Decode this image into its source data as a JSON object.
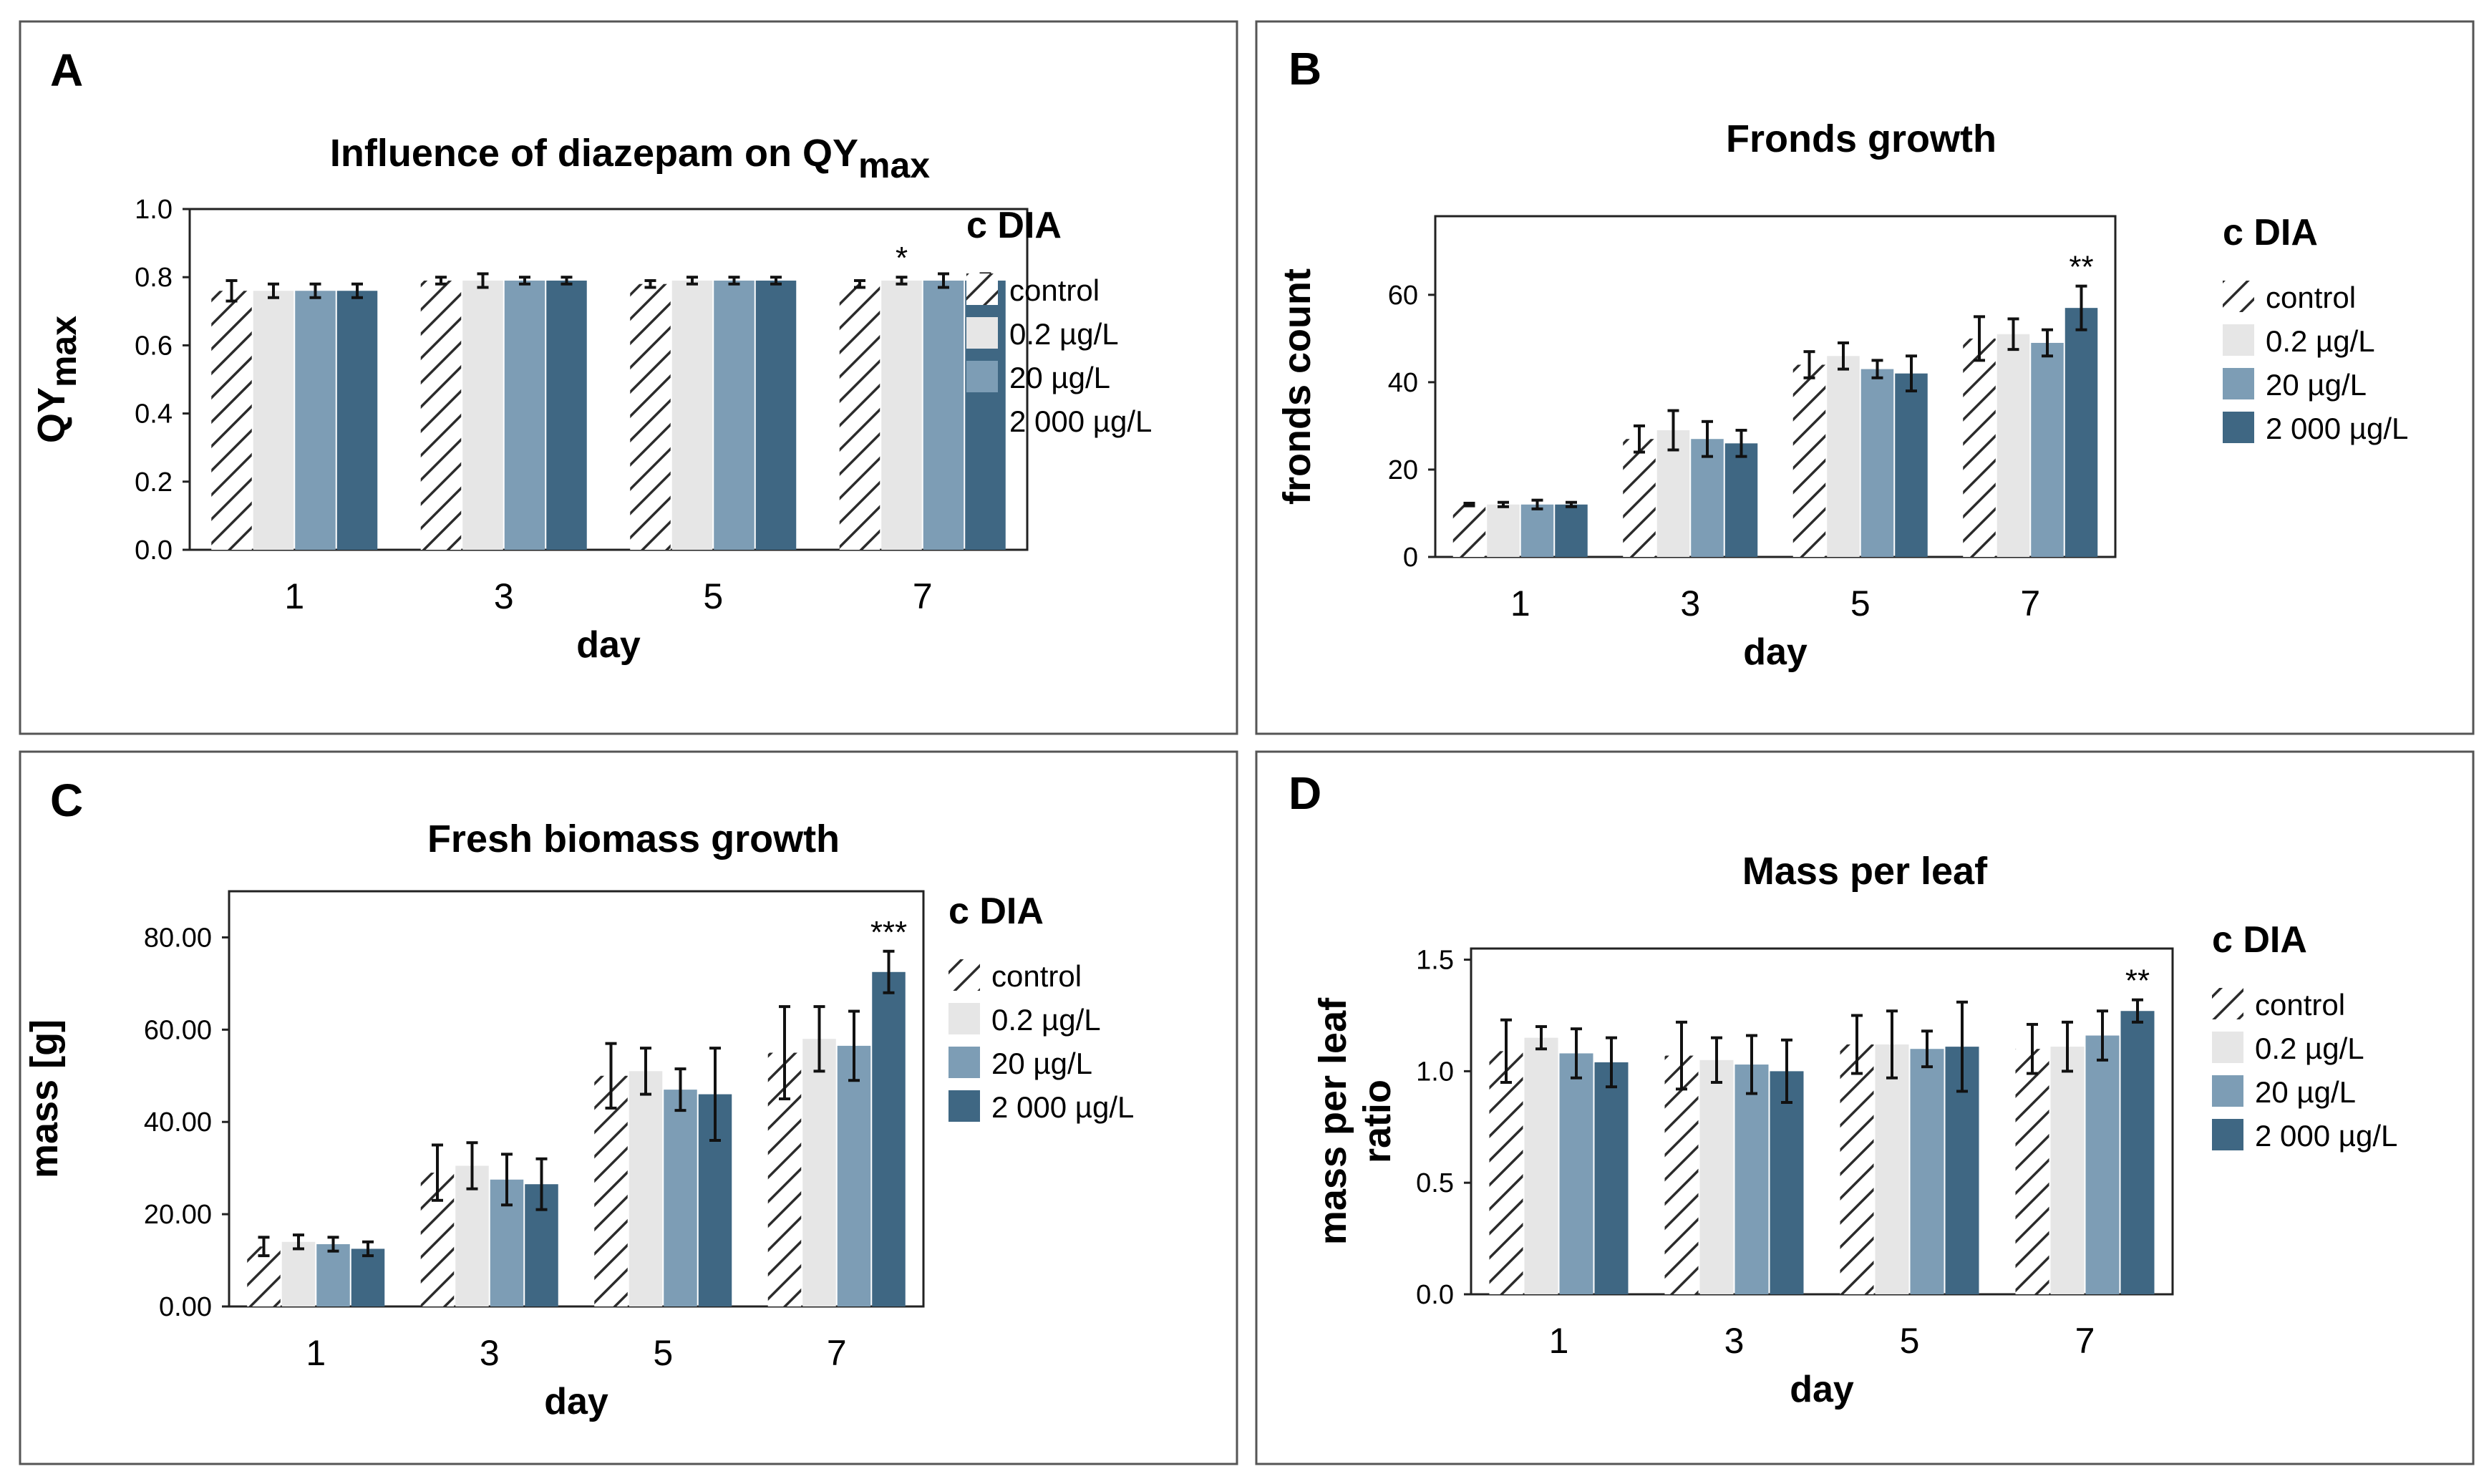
{
  "figure": {
    "legend_labels": [
      "control",
      "0.2 µg/L",
      "20 µg/L",
      "2 000 µg/L"
    ],
    "colors": {
      "control": "#ffffff",
      "hatch": "#2b2b2b",
      "low": "#e6e6e6",
      "mid": "#7d9db5",
      "high": "#3f6783",
      "axis": "#222222",
      "frame": "#555555"
    }
  },
  "chart_data": [
    {
      "panel": "A",
      "type": "bar",
      "title": "Influence of diazepam on QY",
      "title_sub": "max",
      "ylabel": "QY",
      "ylabel_sub": "max",
      "xlabel": "day",
      "legend_title": "c DIA",
      "categories": [
        "1",
        "3",
        "5",
        "7"
      ],
      "ylim": [
        0,
        1.0
      ],
      "yticks": [
        "0.0",
        "0.2",
        "0.4",
        "0.6",
        "0.8",
        "1.0"
      ],
      "series": [
        {
          "name": "control",
          "values": [
            0.76,
            0.79,
            0.78,
            0.78
          ],
          "errors": [
            0.03,
            0.01,
            0.01,
            0.01
          ]
        },
        {
          "name": "0.2 µg/L",
          "values": [
            0.76,
            0.79,
            0.79,
            0.79
          ],
          "errors": [
            0.02,
            0.02,
            0.01,
            0.01
          ]
        },
        {
          "name": "20 µg/L",
          "values": [
            0.76,
            0.79,
            0.79,
            0.79
          ],
          "errors": [
            0.02,
            0.01,
            0.01,
            0.02
          ]
        },
        {
          "name": "2 000 µg/L",
          "values": [
            0.76,
            0.79,
            0.79,
            0.79
          ],
          "errors": [
            0.02,
            0.01,
            0.01,
            0.02
          ]
        }
      ],
      "annotations": [
        {
          "category": "7",
          "series": "0.2 µg/L",
          "text": "*"
        }
      ]
    },
    {
      "panel": "B",
      "type": "bar",
      "title": "Fronds growth",
      "ylabel": "fronds count",
      "xlabel": "day",
      "legend_title": "c DIA",
      "categories": [
        "1",
        "3",
        "5",
        "7"
      ],
      "ylim": [
        0,
        78
      ],
      "yticks": [
        "0",
        "20",
        "40",
        "60"
      ],
      "series": [
        {
          "name": "control",
          "values": [
            12,
            27,
            44,
            50
          ],
          "errors": [
            0.3,
            3,
            3,
            5
          ]
        },
        {
          "name": "0.2 µg/L",
          "values": [
            12,
            29,
            46,
            51
          ],
          "errors": [
            0.5,
            4.5,
            3,
            3.5
          ]
        },
        {
          "name": "20 µg/L",
          "values": [
            12,
            27,
            43,
            49
          ],
          "errors": [
            1,
            4,
            2,
            3
          ]
        },
        {
          "name": "2 000 µg/L",
          "values": [
            12,
            26,
            42,
            57
          ],
          "errors": [
            0.5,
            3,
            4,
            5
          ]
        }
      ],
      "annotations": [
        {
          "category": "7",
          "series": "2 000 µg/L",
          "text": "**"
        }
      ]
    },
    {
      "panel": "C",
      "type": "bar",
      "title": "Fresh biomass growth",
      "ylabel": "mass [g]",
      "xlabel": "day",
      "legend_title": "c DIA",
      "categories": [
        "1",
        "3",
        "5",
        "7"
      ],
      "ylim": [
        0,
        90
      ],
      "yticks": [
        "0.00",
        "20.00",
        "40.00",
        "60.00",
        "80.00"
      ],
      "series": [
        {
          "name": "control",
          "values": [
            13,
            29,
            50,
            55
          ],
          "errors": [
            2,
            6,
            7,
            10
          ]
        },
        {
          "name": "0.2 µg/L",
          "values": [
            14,
            30.5,
            51,
            58
          ],
          "errors": [
            1.5,
            5,
            5,
            7
          ]
        },
        {
          "name": "20 µg/L",
          "values": [
            13.5,
            27.5,
            47,
            56.5
          ],
          "errors": [
            1.5,
            5.5,
            4.5,
            7.5
          ]
        },
        {
          "name": "2 000 µg/L",
          "values": [
            12.5,
            26.5,
            46,
            72.5
          ],
          "errors": [
            1.5,
            5.5,
            10,
            4.5
          ]
        }
      ],
      "annotations": [
        {
          "category": "7",
          "series": "2 000 µg/L",
          "text": "***"
        }
      ]
    },
    {
      "panel": "D",
      "type": "bar",
      "title": "Mass per leaf",
      "ylabel": "mass per leaf",
      "ylabel2": "ratio",
      "xlabel": "day",
      "legend_title": "c DIA",
      "categories": [
        "1",
        "3",
        "5",
        "7"
      ],
      "ylim": [
        0,
        1.55
      ],
      "yticks": [
        "0.0",
        "0.5",
        "1.0",
        "1.5"
      ],
      "series": [
        {
          "name": "control",
          "values": [
            1.09,
            1.07,
            1.12,
            1.1
          ],
          "errors": [
            0.14,
            0.15,
            0.13,
            0.11
          ]
        },
        {
          "name": "0.2 µg/L",
          "values": [
            1.15,
            1.05,
            1.12,
            1.11
          ],
          "errors": [
            0.05,
            0.1,
            0.15,
            0.11
          ]
        },
        {
          "name": "20 µg/L",
          "values": [
            1.08,
            1.03,
            1.1,
            1.16
          ],
          "errors": [
            0.11,
            0.13,
            0.08,
            0.11
          ]
        },
        {
          "name": "2 000 µg/L",
          "values": [
            1.04,
            1.0,
            1.11,
            1.27
          ],
          "errors": [
            0.11,
            0.14,
            0.2,
            0.05
          ]
        }
      ],
      "annotations": [
        {
          "category": "7",
          "series": "2 000 µg/L",
          "text": "**"
        }
      ]
    }
  ]
}
